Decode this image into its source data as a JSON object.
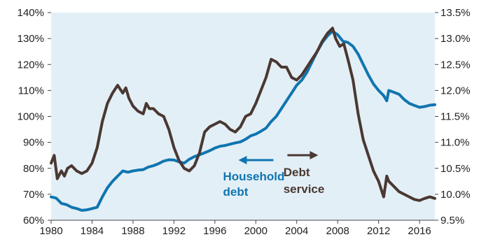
{
  "chart_data": {
    "type": "line",
    "title": "",
    "xlabel": "",
    "ylabel_left": "",
    "ylabel_right": "",
    "xlim": [
      1980,
      2017.5
    ],
    "ylim_left": [
      60,
      140
    ],
    "ylim_right": [
      9.5,
      13.5
    ],
    "x_ticks": [
      "1980",
      "1984",
      "1988",
      "1992",
      "1996",
      "2000",
      "2004",
      "2008",
      "2012",
      "2016"
    ],
    "y_ticks_left": [
      "60%",
      "70%",
      "80%",
      "90%",
      "100%",
      "110%",
      "120%",
      "130%",
      "140%"
    ],
    "y_ticks_right": [
      "9.5%",
      "10.0%",
      "10.5%",
      "11.0%",
      "11.5%",
      "12.0%",
      "12.5%",
      "13.0%",
      "13.5%"
    ],
    "grid": false,
    "plot_background": "#e3eff6",
    "series": [
      {
        "id": "household",
        "name": "Household debt",
        "axis": "left",
        "color": "#0f75b0",
        "label_lines": [
          "Household",
          "debt"
        ],
        "points": [
          [
            1980,
            69
          ],
          [
            1980.5,
            68.5
          ],
          [
            1981,
            66.5
          ],
          [
            1981.5,
            66
          ],
          [
            1982,
            65
          ],
          [
            1982.5,
            64.5
          ],
          [
            1983,
            63.8
          ],
          [
            1983.5,
            64
          ],
          [
            1984,
            64.5
          ],
          [
            1984.5,
            65
          ],
          [
            1985,
            69
          ],
          [
            1985.5,
            72.5
          ],
          [
            1986,
            75
          ],
          [
            1986.5,
            77
          ],
          [
            1987,
            79
          ],
          [
            1987.5,
            78.5
          ],
          [
            1988,
            79
          ],
          [
            1988.5,
            79.3
          ],
          [
            1989,
            79.5
          ],
          [
            1989.5,
            80.5
          ],
          [
            1990,
            81
          ],
          [
            1990.5,
            81.8
          ],
          [
            1991,
            82.8
          ],
          [
            1991.5,
            83.3
          ],
          [
            1992,
            83.2
          ],
          [
            1992.5,
            82.5
          ],
          [
            1993,
            82
          ],
          [
            1993.5,
            83.5
          ],
          [
            1994,
            84.5
          ],
          [
            1994.5,
            85.2
          ],
          [
            1995,
            86
          ],
          [
            1995.5,
            86.8
          ],
          [
            1996,
            87.8
          ],
          [
            1996.5,
            88.5
          ],
          [
            1997,
            88.8
          ],
          [
            1997.5,
            89.3
          ],
          [
            1998,
            89.8
          ],
          [
            1998.5,
            90.2
          ],
          [
            1999,
            91.2
          ],
          [
            1999.5,
            92.5
          ],
          [
            2000,
            93.2
          ],
          [
            2000.5,
            94.3
          ],
          [
            2001,
            95.5
          ],
          [
            2001.5,
            98
          ],
          [
            2002,
            100
          ],
          [
            2002.5,
            103
          ],
          [
            2003,
            106
          ],
          [
            2003.5,
            109
          ],
          [
            2004,
            112
          ],
          [
            2004.5,
            114
          ],
          [
            2005,
            117
          ],
          [
            2005.5,
            121
          ],
          [
            2006,
            125
          ],
          [
            2006.5,
            128.5
          ],
          [
            2007,
            131
          ],
          [
            2007.5,
            132.8
          ],
          [
            2008,
            131.5
          ],
          [
            2008.5,
            129
          ],
          [
            2009,
            128.5
          ],
          [
            2009.5,
            127
          ],
          [
            2010,
            124
          ],
          [
            2010.5,
            120
          ],
          [
            2011,
            116
          ],
          [
            2011.5,
            112.5
          ],
          [
            2012,
            110
          ],
          [
            2012.5,
            108
          ],
          [
            2012.8,
            106
          ],
          [
            2013,
            110
          ],
          [
            2013.5,
            109.3
          ],
          [
            2014,
            108.5
          ],
          [
            2014.5,
            106.5
          ],
          [
            2015,
            105
          ],
          [
            2015.5,
            104.2
          ],
          [
            2016,
            103.5
          ],
          [
            2016.5,
            103.8
          ],
          [
            2017,
            104.3
          ],
          [
            2017.5,
            104.5
          ]
        ]
      },
      {
        "id": "debt_service",
        "name": "Debt service",
        "axis": "right",
        "color": "#4a3832",
        "label_lines": [
          "Debt",
          "service"
        ],
        "points": [
          [
            1980,
            10.6
          ],
          [
            1980.3,
            10.75
          ],
          [
            1980.6,
            10.3
          ],
          [
            1981,
            10.45
          ],
          [
            1981.3,
            10.35
          ],
          [
            1981.6,
            10.5
          ],
          [
            1982,
            10.55
          ],
          [
            1982.5,
            10.45
          ],
          [
            1983,
            10.4
          ],
          [
            1983.5,
            10.45
          ],
          [
            1984,
            10.6
          ],
          [
            1984.5,
            10.9
          ],
          [
            1985,
            11.4
          ],
          [
            1985.5,
            11.75
          ],
          [
            1986,
            11.95
          ],
          [
            1986.5,
            12.1
          ],
          [
            1987,
            11.95
          ],
          [
            1987.3,
            12.05
          ],
          [
            1987.6,
            11.85
          ],
          [
            1988,
            11.7
          ],
          [
            1988.5,
            11.6
          ],
          [
            1989,
            11.55
          ],
          [
            1989.3,
            11.75
          ],
          [
            1989.6,
            11.65
          ],
          [
            1990,
            11.65
          ],
          [
            1990.5,
            11.55
          ],
          [
            1991,
            11.5
          ],
          [
            1991.5,
            11.25
          ],
          [
            1992,
            10.9
          ],
          [
            1992.5,
            10.65
          ],
          [
            1993,
            10.5
          ],
          [
            1993.5,
            10.45
          ],
          [
            1994,
            10.55
          ],
          [
            1994.5,
            10.8
          ],
          [
            1995,
            11.2
          ],
          [
            1995.5,
            11.3
          ],
          [
            1996,
            11.35
          ],
          [
            1996.5,
            11.4
          ],
          [
            1997,
            11.35
          ],
          [
            1997.5,
            11.25
          ],
          [
            1998,
            11.2
          ],
          [
            1998.5,
            11.3
          ],
          [
            1999,
            11.5
          ],
          [
            1999.5,
            11.55
          ],
          [
            2000,
            11.75
          ],
          [
            2000.5,
            12.0
          ],
          [
            2001,
            12.25
          ],
          [
            2001.5,
            12.6
          ],
          [
            2002,
            12.55
          ],
          [
            2002.5,
            12.45
          ],
          [
            2003,
            12.45
          ],
          [
            2003.5,
            12.25
          ],
          [
            2004,
            12.2
          ],
          [
            2004.5,
            12.3
          ],
          [
            2005,
            12.45
          ],
          [
            2005.5,
            12.6
          ],
          [
            2006,
            12.75
          ],
          [
            2006.5,
            12.95
          ],
          [
            2007,
            13.1
          ],
          [
            2007.5,
            13.2
          ],
          [
            2007.8,
            13.0
          ],
          [
            2008.2,
            12.85
          ],
          [
            2008.6,
            12.9
          ],
          [
            2009,
            12.6
          ],
          [
            2009.5,
            12.2
          ],
          [
            2010,
            11.55
          ],
          [
            2010.5,
            11.05
          ],
          [
            2011,
            10.75
          ],
          [
            2011.5,
            10.45
          ],
          [
            2012,
            10.25
          ],
          [
            2012.5,
            9.95
          ],
          [
            2012.8,
            10.35
          ],
          [
            2013,
            10.25
          ],
          [
            2013.5,
            10.15
          ],
          [
            2014,
            10.05
          ],
          [
            2014.5,
            10.0
          ],
          [
            2015,
            9.95
          ],
          [
            2015.5,
            9.9
          ],
          [
            2016,
            9.88
          ],
          [
            2016.5,
            9.92
          ],
          [
            2017,
            9.95
          ],
          [
            2017.5,
            9.92
          ]
        ]
      }
    ]
  }
}
